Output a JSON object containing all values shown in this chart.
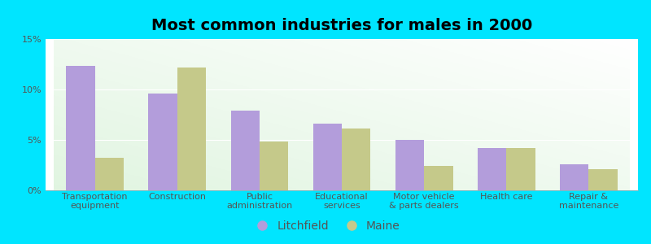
{
  "title": "Most common industries for males in 2000",
  "categories": [
    "Transportation\nequipment",
    "Construction",
    "Public\nadministration",
    "Educational\nservices",
    "Motor vehicle\n& parts dealers",
    "Health care",
    "Repair &\nmaintenance"
  ],
  "litchfield": [
    12.3,
    9.6,
    7.9,
    6.6,
    5.0,
    4.2,
    2.6
  ],
  "maine": [
    3.2,
    12.2,
    4.8,
    6.1,
    2.4,
    4.2,
    2.1
  ],
  "litchfield_color": "#b39ddb",
  "maine_color": "#c5c98a",
  "background_outer": "#00e5ff",
  "ylim": [
    0,
    15
  ],
  "yticks": [
    0,
    5,
    10,
    15
  ],
  "ytick_labels": [
    "0%",
    "5%",
    "10%",
    "15%"
  ],
  "legend_litchfield": "Litchfield",
  "legend_maine": "Maine",
  "bar_width": 0.35,
  "title_fontsize": 14,
  "tick_fontsize": 8,
  "legend_fontsize": 10
}
